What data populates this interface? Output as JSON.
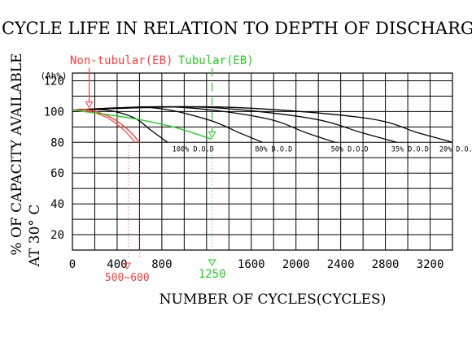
{
  "chart_data": {
    "type": "line",
    "title": "CYCLE LIFE IN RELATION TO DEPTH OF DISCHARGE",
    "xlabel": "NUMBER OF CYCLES(CYCLES)",
    "ylabel_line1": "% OF CAPACITY AVAILABLE",
    "ylabel_line2": "AT 30° C",
    "y_unit": "(Ah%)",
    "xlim": [
      0,
      3400
    ],
    "ylim": [
      10,
      125
    ],
    "x_ticks": [
      0,
      400,
      800,
      1600,
      2000,
      2400,
      2800,
      3200
    ],
    "y_ticks": [
      20,
      40,
      60,
      80,
      100,
      120
    ],
    "grid": true,
    "series": [
      {
        "name": "100% D.O.D",
        "color": "#000000",
        "points": [
          [
            0,
            101
          ],
          [
            300,
            101
          ],
          [
            550,
            96
          ],
          [
            700,
            88
          ],
          [
            850,
            80
          ]
        ]
      },
      {
        "name": "80% D.O.D",
        "color": "#000000",
        "points": [
          [
            0,
            101
          ],
          [
            700,
            102.5
          ],
          [
            1200,
            95
          ],
          [
            1500,
            86
          ],
          [
            1700,
            80
          ]
        ]
      },
      {
        "name": "50% D.O.D",
        "color": "#000000",
        "points": [
          [
            0,
            101
          ],
          [
            900,
            103
          ],
          [
            1700,
            96
          ],
          [
            2100,
            86
          ],
          [
            2350,
            80
          ]
        ]
      },
      {
        "name": "35% D.O.D",
        "color": "#000000",
        "points": [
          [
            0,
            101
          ],
          [
            1100,
            103
          ],
          [
            2100,
            96
          ],
          [
            2600,
            86
          ],
          [
            2900,
            80
          ]
        ]
      },
      {
        "name": "20% D.O.D",
        "color": "#000000",
        "points": [
          [
            0,
            101
          ],
          [
            1300,
            103
          ],
          [
            2600,
            96
          ],
          [
            3100,
            86
          ],
          [
            3400,
            80
          ]
        ]
      },
      {
        "name": "Non-tubular(EB)",
        "color": "#ff3b3b",
        "points": [
          [
            0,
            101
          ],
          [
            150,
            101
          ],
          [
            350,
            96
          ],
          [
            500,
            88
          ],
          [
            600,
            80
          ]
        ]
      },
      {
        "name": "Tubular(EB)",
        "color": "#22cc22",
        "points": [
          [
            0,
            101
          ],
          [
            500,
            96
          ],
          [
            900,
            90
          ],
          [
            1250,
            82
          ]
        ]
      }
    ],
    "dod_labels": [
      {
        "text": "100% D.O.D",
        "x": 1080
      },
      {
        "text": "80% D.O.D",
        "x": 1800
      },
      {
        "text": "50% D.O.D",
        "x": 2480
      },
      {
        "text": "35% D.O.D",
        "x": 3020
      },
      {
        "text": "20% D.O.D",
        "x": 3450
      }
    ],
    "annotations": {
      "non_tubular": {
        "label": "Non-tubular(EB)",
        "range_label": "500~600",
        "x_start": 500,
        "x_end": 600,
        "marker_x": 150,
        "color": "#ff3b3b"
      },
      "tubular": {
        "label": "Tubular(EB)",
        "cycle_label": "1250",
        "x": 1250,
        "color": "#22cc22"
      }
    }
  }
}
